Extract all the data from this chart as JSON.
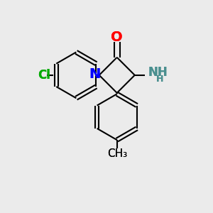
{
  "bg_color": "#ebebeb",
  "bond_color": "#000000",
  "bond_width": 1.5,
  "dbo": 0.12,
  "atom_colors": {
    "O": "#ff0000",
    "N_ring": "#0000ff",
    "N_amine": "#4a8f8f",
    "Cl": "#00aa00",
    "C": "#000000"
  },
  "font_sizes": {
    "O": 14,
    "N": 14,
    "Cl": 12,
    "NH2": 12,
    "CH3": 11
  },
  "fig_size": [
    3.0,
    3.0
  ],
  "dpi": 100,
  "xlim": [
    0,
    10
  ],
  "ylim": [
    0,
    10
  ]
}
